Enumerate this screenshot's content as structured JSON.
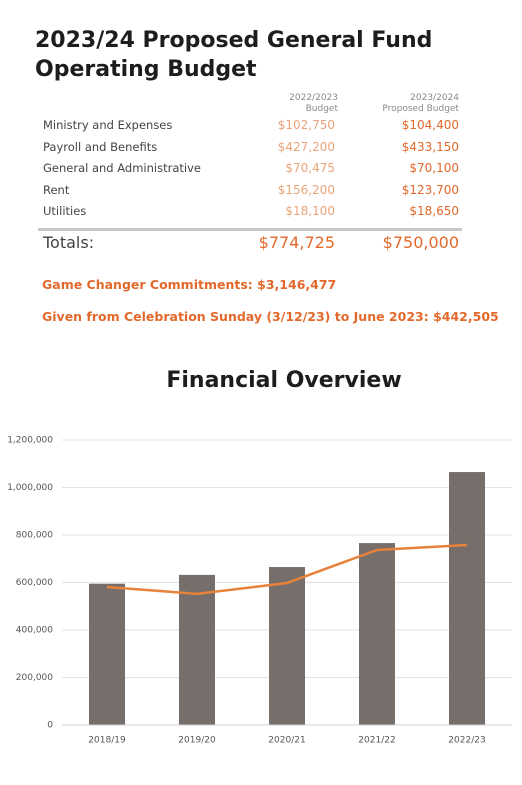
{
  "header": {
    "title_line1": "2023/24 Proposed General Fund",
    "title_line2": "Operating Budget"
  },
  "table": {
    "columns": [
      {
        "year": "2022/2023",
        "label": "Budget"
      },
      {
        "year": "2023/2024",
        "label": "Proposed Budget"
      }
    ],
    "rows": [
      [
        "Ministry and Expenses",
        "$102,750",
        "$104,400"
      ],
      [
        "Payroll and Benefits",
        "$427,200",
        "$433,150"
      ],
      [
        "General and Administrative",
        "$70,475",
        "$70,100"
      ],
      [
        "Rent",
        "$156,200",
        "$123,700"
      ],
      [
        "Utilities",
        "$18,100",
        "$18,650"
      ]
    ],
    "totals": [
      "Totals:",
      "$774,725",
      "$750,000"
    ]
  },
  "notes": [
    {
      "label": "Game Changer Commitments:",
      "value": "$3,146,477"
    },
    {
      "label": "Given from Celebration Sunday (3/12/23) to June 2023:",
      "value": "$442,505"
    }
  ],
  "chart_data": {
    "type": "bar_line",
    "title": "Financial Overview",
    "categories": [
      "2018/19",
      "2019/20",
      "2020/21",
      "2021/22",
      "2022/23"
    ],
    "series": [
      {
        "type": "bar",
        "color": "#756e6b",
        "values": [
          595000,
          632000,
          665000,
          766000,
          1065000
        ]
      },
      {
        "type": "line",
        "color": "#e8823a",
        "values": [
          581000,
          552000,
          598000,
          737000,
          758000
        ]
      }
    ],
    "ylim": [
      0,
      1200000
    ],
    "yticks": [
      0,
      {
        "value": 200000,
        "label": "200,000"
      },
      {
        "value": 400000,
        "label": "400,000"
      },
      {
        "value": 600000,
        "label": "600,000"
      },
      {
        "value": 800000,
        "label": "800,000"
      },
      {
        "value": 1000000,
        "label": "1,000,000"
      },
      {
        "value": 1200000,
        "label": "1,200,000"
      }
    ],
    "grid": true
  }
}
